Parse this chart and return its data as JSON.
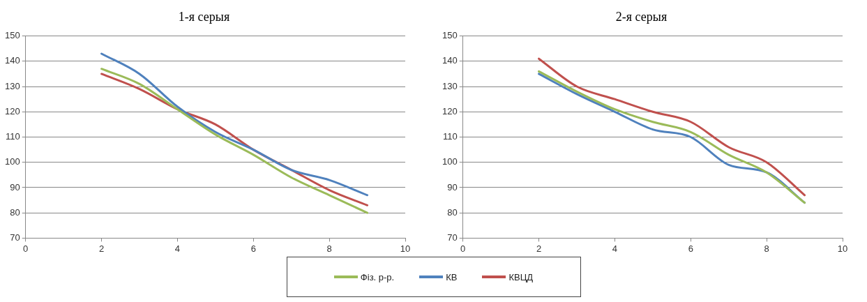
{
  "chart_data": [
    {
      "type": "line",
      "title": "1-я серыя",
      "x": [
        2,
        3,
        4,
        5,
        6,
        7,
        8,
        9
      ],
      "xlim": [
        0,
        10
      ],
      "xticks": [
        0,
        2,
        4,
        6,
        8,
        10
      ],
      "ylim": [
        70,
        150
      ],
      "yticks": [
        70,
        80,
        90,
        100,
        110,
        120,
        130,
        140,
        150
      ],
      "grid": "y",
      "legend": "bottom",
      "marker": "none",
      "series": [
        {
          "name": "Фіз. р-р.",
          "color": "#9bbb59",
          "values": [
            137,
            131,
            121,
            111,
            103,
            94,
            87,
            80
          ]
        },
        {
          "name": "КВ",
          "color": "#4f81bd",
          "values": [
            143,
            135,
            122,
            112,
            105,
            97,
            93,
            87
          ]
        },
        {
          "name": "КВЦД",
          "color": "#c0504d",
          "values": [
            135,
            129,
            121,
            115,
            105,
            97,
            89,
            83
          ]
        }
      ]
    },
    {
      "type": "line",
      "title": "2-я серыя",
      "x": [
        2,
        3,
        4,
        5,
        6,
        7,
        8,
        9
      ],
      "xlim": [
        0,
        10
      ],
      "xticks": [
        0,
        2,
        4,
        6,
        8,
        10
      ],
      "ylim": [
        70,
        150
      ],
      "yticks": [
        70,
        80,
        90,
        100,
        110,
        120,
        130,
        140,
        150
      ],
      "grid": "y",
      "legend": "bottom",
      "marker": "none",
      "series": [
        {
          "name": "Фіз. р-р.",
          "color": "#9bbb59",
          "values": [
            136,
            128,
            121,
            116,
            112,
            103,
            96,
            84
          ]
        },
        {
          "name": "КВ",
          "color": "#4f81bd",
          "values": [
            135,
            127,
            120,
            113,
            110,
            99,
            96,
            84
          ]
        },
        {
          "name": "КВЦД",
          "color": "#c0504d",
          "values": [
            141,
            130,
            125,
            120,
            116,
            106,
            100,
            87
          ]
        }
      ]
    }
  ]
}
